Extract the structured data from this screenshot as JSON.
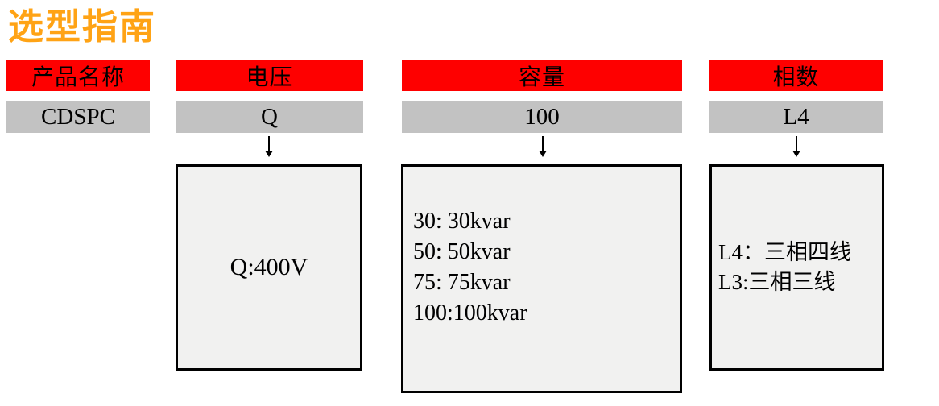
{
  "title": "选型指南",
  "columns": [
    {
      "header": "产品名称",
      "value": "CDSPC"
    },
    {
      "header": "电压",
      "value": "Q",
      "detail_lines": [
        "Q:400V"
      ]
    },
    {
      "header": "容量",
      "value": "100",
      "detail_lines": [
        "30: 30kvar",
        "50: 50kvar",
        "75: 75kvar",
        "100:100kvar"
      ]
    },
    {
      "header": "相数",
      "value": "L4",
      "detail_lines": [
        "L4：三相四线",
        "L3:三相三线"
      ]
    }
  ],
  "colors": {
    "title": "#FFA315",
    "header_bg": "#FE0000",
    "value_bg": "#C2C2C2",
    "box_bg": "#F1F1F0",
    "box_border": "#000000"
  }
}
